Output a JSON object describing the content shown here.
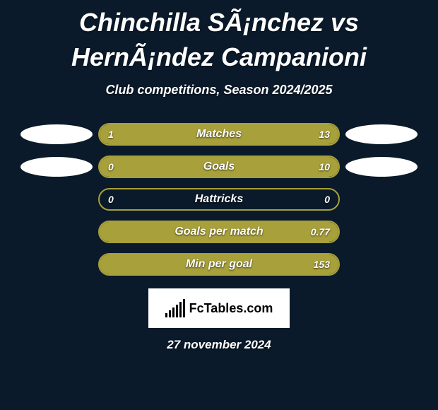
{
  "title": "Chinchilla SÃ¡nchez vs HernÃ¡ndez Campanioni",
  "subtitle": "Club competitions, Season 2024/2025",
  "date": "27 november 2024",
  "logo_text": "FcTables.com",
  "colors": {
    "background": "#0a1a2a",
    "bar_border": "#a8a03a",
    "bar_fill": "#a8a03a",
    "ellipse_white": "#ffffff",
    "text": "#ffffff"
  },
  "logo_bar_heights": [
    6,
    10,
    14,
    18,
    22,
    26
  ],
  "stats": [
    {
      "label": "Matches",
      "left_val": "1",
      "right_val": "13",
      "left_pct": 7.1,
      "right_pct": 92.9,
      "show_ellipses": true,
      "left_ellipse_color": "#ffffff",
      "right_ellipse_color": "#ffffff"
    },
    {
      "label": "Goals",
      "left_val": "0",
      "right_val": "10",
      "left_pct": 0,
      "right_pct": 100,
      "show_ellipses": true,
      "left_ellipse_color": "#ffffff",
      "right_ellipse_color": "#ffffff"
    },
    {
      "label": "Hattricks",
      "left_val": "0",
      "right_val": "0",
      "left_pct": 0,
      "right_pct": 0,
      "show_ellipses": false
    },
    {
      "label": "Goals per match",
      "left_val": "",
      "right_val": "0.77",
      "left_pct": 0,
      "right_pct": 100,
      "show_ellipses": false
    },
    {
      "label": "Min per goal",
      "left_val": "",
      "right_val": "153",
      "left_pct": 0,
      "right_pct": 100,
      "show_ellipses": false
    }
  ]
}
